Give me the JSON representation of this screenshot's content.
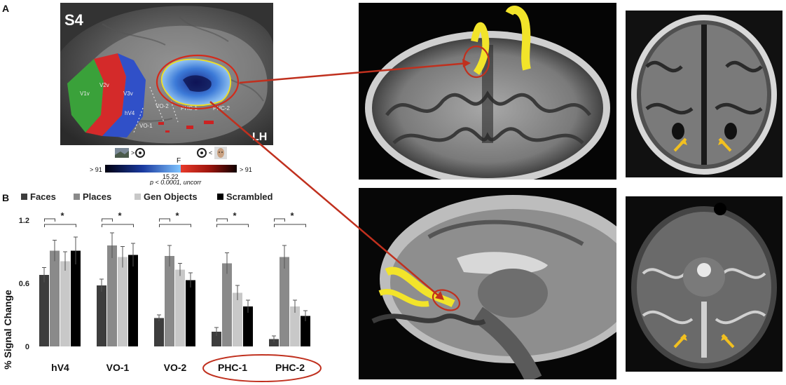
{
  "panel_a_label": "A",
  "panel_b_label": "B",
  "cortex": {
    "subject": "S4",
    "hemisphere": "LH",
    "roi_labels": [
      "V1v",
      "V2v",
      "V3v",
      "hV4",
      "VO-1",
      "VO-2",
      "PHC-1",
      "PHC-2"
    ]
  },
  "colorbar": {
    "f_label": "F",
    "left_value": "> 91",
    "mid_value": "15.22",
    "right_value": "> 91",
    "compare_left": ">",
    "compare_right": "<",
    "pvalue": "p < 0.0001, uncorr"
  },
  "chart_data": {
    "type": "bar",
    "categories": [
      "hV4",
      "VO-1",
      "VO-2",
      "PHC-1",
      "PHC-2"
    ],
    "series": [
      {
        "name": "Faces",
        "color": "#3d3d3d",
        "values": [
          0.68,
          0.58,
          0.27,
          0.14,
          0.07
        ],
        "errors": [
          0.07,
          0.06,
          0.03,
          0.04,
          0.03
        ]
      },
      {
        "name": "Places",
        "color": "#8a8a8a",
        "values": [
          0.91,
          0.96,
          0.86,
          0.79,
          0.85
        ],
        "errors": [
          0.1,
          0.12,
          0.1,
          0.1,
          0.11
        ]
      },
      {
        "name": "Gen Objects",
        "color": "#c8c8c8",
        "values": [
          0.81,
          0.85,
          0.73,
          0.51,
          0.38
        ],
        "errors": [
          0.09,
          0.1,
          0.06,
          0.07,
          0.06
        ]
      },
      {
        "name": "Scrambled",
        "color": "#000000",
        "values": [
          0.91,
          0.87,
          0.63,
          0.38,
          0.29
        ],
        "errors": [
          0.13,
          0.11,
          0.07,
          0.06,
          0.05
        ]
      }
    ],
    "ylabel": "% Signal Change",
    "yticks": [
      "0",
      "0.6",
      "1.2"
    ],
    "ylim": [
      0,
      1.2
    ],
    "significance": "*",
    "highlighted_categories": [
      "PHC-1",
      "PHC-2"
    ],
    "legend_position": "top"
  }
}
